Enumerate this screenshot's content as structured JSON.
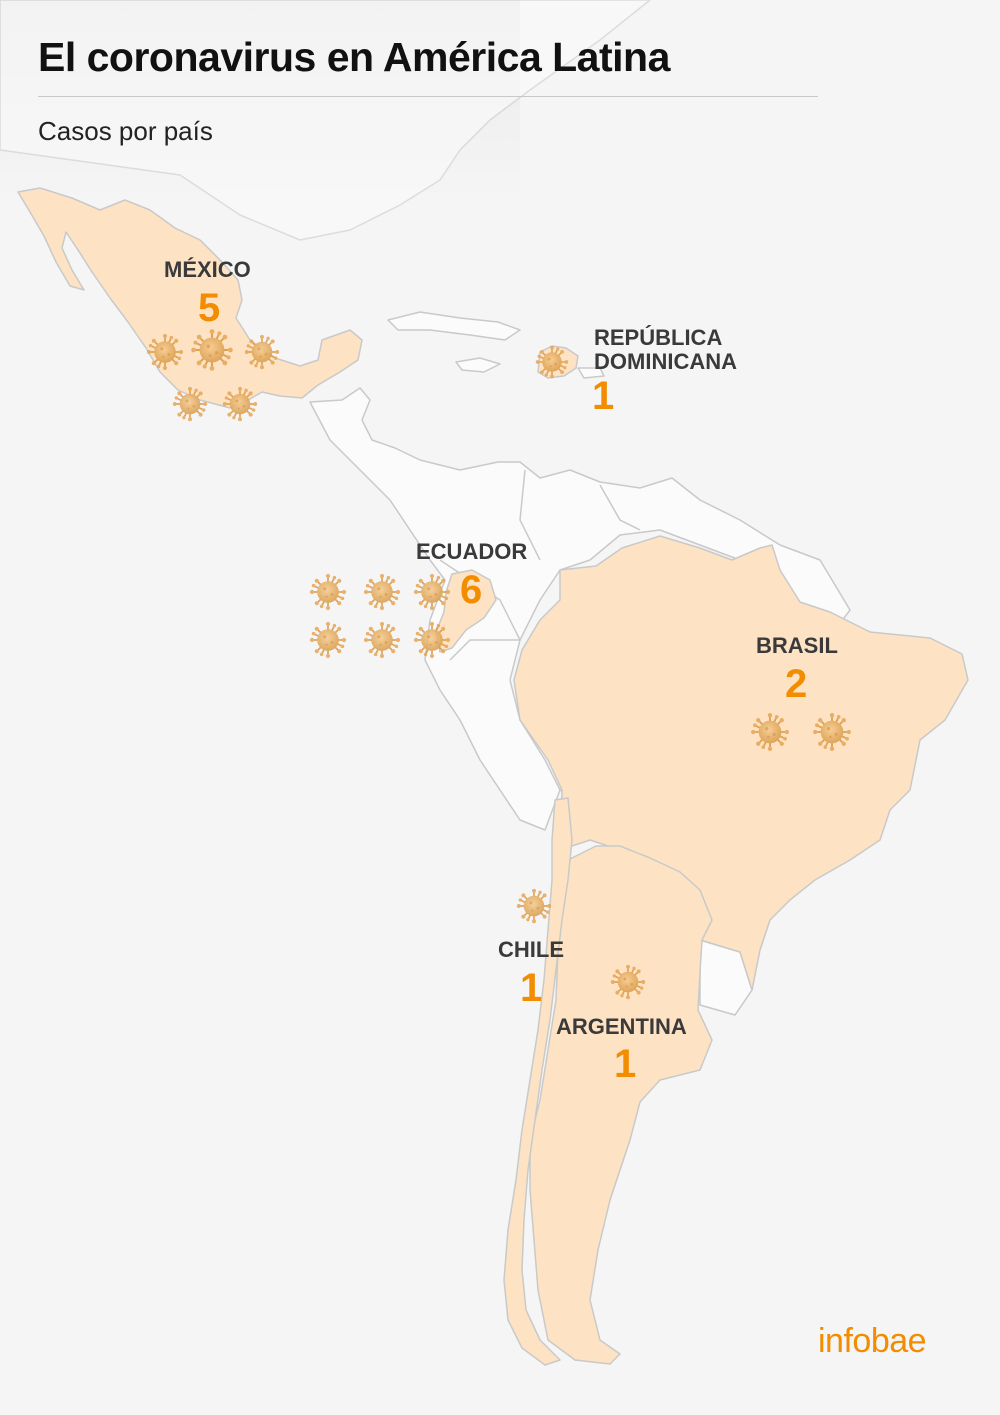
{
  "title": "El coronavirus en América Latina",
  "subtitle": "Casos por país",
  "colors": {
    "background": "#f5f5f5",
    "land": "#fbfbfb",
    "border": "#c9c9c9",
    "affected_land": "#fde3c4",
    "case_count": "#f28c00",
    "virus": "#e2a24c",
    "logo": "#f28c00"
  },
  "countries": [
    {
      "key": "mexico",
      "name": "MÉXICO",
      "cases": 5
    },
    {
      "key": "dominican_republic",
      "name_line1": "REPÚBLICA",
      "name_line2": "DOMINICANA",
      "cases": 1
    },
    {
      "key": "ecuador",
      "name": "ECUADOR",
      "cases": 6
    },
    {
      "key": "brazil",
      "name": "BRASIL",
      "cases": 2
    },
    {
      "key": "chile",
      "name": "CHILE",
      "cases": 1
    },
    {
      "key": "argentina",
      "name": "ARGENTINA",
      "cases": 1
    }
  ],
  "virus_icon": "coronavirus-icon",
  "logo": "infobae"
}
